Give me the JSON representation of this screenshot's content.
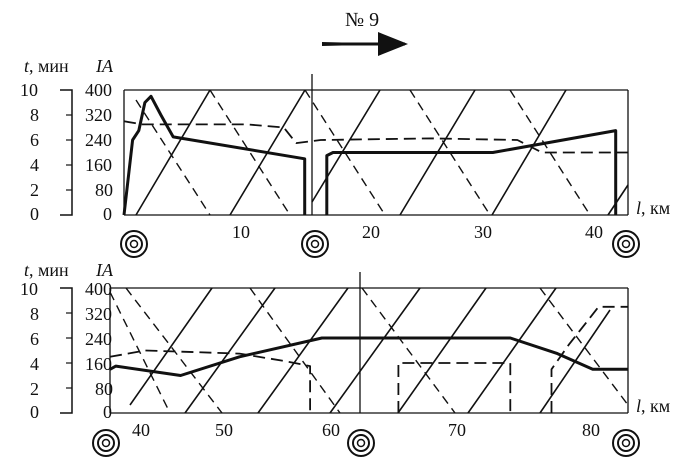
{
  "train_label": "№ 9",
  "left_axis_label_t": "t",
  "left_axis_label_unit": ", мин",
  "right_axis_label": "IA",
  "x_axis_var": "l",
  "x_axis_unit": ", км",
  "t_ticks": [
    "10",
    "8",
    "6",
    "4",
    "2",
    "0"
  ],
  "ia_ticks": [
    "400",
    "320",
    "240",
    "160",
    "80",
    "0"
  ],
  "top_km_ticks": [
    "10",
    "20",
    "30",
    "40"
  ],
  "bottom_km_ticks": [
    "40",
    "50",
    "60",
    "70",
    "80"
  ],
  "chart_data": [
    {
      "type": "line",
      "panel": "top",
      "x_range_km": [
        0,
        41
      ],
      "t_range_min": [
        0,
        10
      ],
      "ia_range_A": [
        0,
        400
      ],
      "stations_km": [
        0,
        15,
        41
      ],
      "series": [
        {
          "style": "solid",
          "x": [
            0,
            0.7,
            1.2,
            1.7,
            2.2,
            3.0,
            4.0,
            14.7,
            14.7
          ],
          "y": [
            0,
            240,
            270,
            360,
            380,
            320,
            250,
            180,
            0
          ]
        },
        {
          "style": "solid",
          "x": [
            16.5,
            16.5,
            17,
            30,
            40,
            40
          ],
          "y": [
            0,
            190,
            200,
            200,
            270,
            0
          ]
        },
        {
          "style": "dashed",
          "x": [
            0,
            1.5,
            3,
            10,
            13,
            14,
            16,
            25,
            32,
            34,
            41
          ],
          "y": [
            300,
            290,
            290,
            290,
            280,
            230,
            240,
            245,
            240,
            200,
            200
          ]
        }
      ]
    },
    {
      "type": "line",
      "panel": "bottom",
      "x_range_km": [
        38,
        82
      ],
      "t_range_min": [
        0,
        10
      ],
      "ia_range_A": [
        0,
        400
      ],
      "stations_km": [
        38,
        61,
        82
      ],
      "series": [
        {
          "style": "solid",
          "x": [
            38,
            38.5,
            44,
            49,
            56,
            72,
            76,
            79,
            82
          ],
          "y": [
            140,
            150,
            120,
            180,
            240,
            240,
            190,
            140,
            140
          ]
        },
        {
          "style": "dashed",
          "x": [
            38,
            41,
            49,
            53,
            55,
            55
          ],
          "y": [
            180,
            200,
            190,
            165,
            150,
            0
          ]
        },
        {
          "style": "dashed",
          "x": [
            62.5,
            62.5,
            72,
            72
          ],
          "y": [
            0,
            160,
            160,
            0
          ]
        },
        {
          "style": "dashed",
          "x": [
            75.5,
            75.5,
            77,
            79.5,
            82
          ],
          "y": [
            0,
            140,
            220,
            340,
            340
          ]
        }
      ]
    }
  ]
}
